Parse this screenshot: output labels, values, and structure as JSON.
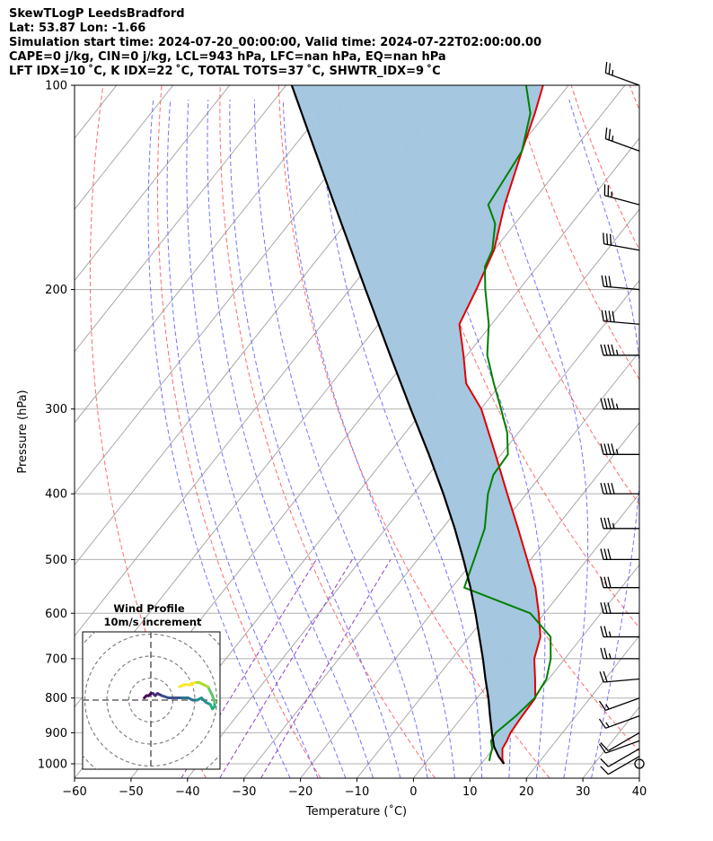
{
  "title_lines": [
    "SkewTLogP LeedsBradford",
    "Lat: 53.87   Lon: -1.66",
    "Simulation start time: 2024-07-20_00:00:00, Valid time: 2024-07-22T02:00:00.00",
    "CAPE=0 j/kg, CIN=0 j/kg, LCL=943 hPa, LFC=nan hPa, EQ=nan hPa",
    "LFT IDX=10 ˚C, K IDX=22 ˚C, TOTAL TOTS=37 ˚C, SHWTR_IDX=9 ˚C"
  ],
  "chart_data": {
    "type": "line",
    "diagram": "Skew-T log-P",
    "xlabel": "Temperature (˚C)",
    "ylabel": "Pressure (hPa)",
    "xlim": [
      -60,
      40
    ],
    "ylim": [
      1050,
      100
    ],
    "yscale": "log",
    "x_ticks": [
      "−60",
      "−50",
      "−40",
      "−30",
      "−20",
      "−10",
      "0",
      "10",
      "20",
      "30",
      "40"
    ],
    "x_tick_values": [
      -60,
      -50,
      -40,
      -30,
      -20,
      -10,
      0,
      10,
      20,
      30,
      40
    ],
    "y_ticks": [
      "100",
      "200",
      "300",
      "400",
      "500",
      "600",
      "700",
      "800",
      "900",
      "1000"
    ],
    "y_tick_values": [
      100,
      200,
      300,
      400,
      500,
      600,
      700,
      800,
      900,
      1000
    ],
    "grid": true,
    "colors": {
      "temperature": "#e00000",
      "dewpoint": "#008000",
      "parcel": "#000000",
      "cape_fill": "#a3c6df",
      "dry_adiabat": "#ff5050",
      "moist_adiabat": "#5050ff",
      "mixing_ratio": "#9040c0",
      "isotherm": "#aaaaaa"
    },
    "series": [
      {
        "key": "temperature",
        "pressure": [
          1000,
          985,
          950,
          925,
          900,
          850,
          800,
          750,
          700,
          650,
          600,
          550,
          500,
          450,
          400,
          350,
          300,
          275,
          250,
          225,
          200,
          175,
          150,
          125,
          110,
          100
        ],
        "values": [
          14,
          13.1,
          11.6,
          11.3,
          10.8,
          10.5,
          10.3,
          7.6,
          4.6,
          2.6,
          -1,
          -5.2,
          -10.6,
          -16.6,
          -23.4,
          -31,
          -39.9,
          -46.2,
          -50.6,
          -55.7,
          -57.6,
          -60,
          -64.5,
          -69,
          -72,
          -74.5
        ]
      },
      {
        "key": "dewpoint",
        "pressure": [
          990,
          975,
          950,
          925,
          900,
          850,
          800,
          750,
          700,
          650,
          600,
          550,
          500,
          450,
          400,
          375,
          350,
          325,
          300,
          275,
          250,
          225,
          200,
          185,
          175,
          160,
          150,
          140,
          125,
          110,
          100
        ],
        "values": [
          11,
          10.5,
          9.8,
          8.5,
          8.2,
          9.4,
          10.2,
          9.6,
          7.5,
          4.4,
          -2.5,
          -17.8,
          -20,
          -22.5,
          -26.8,
          -28.5,
          -28.8,
          -32,
          -36.4,
          -41.3,
          -46.4,
          -50.5,
          -56,
          -59.3,
          -60.3,
          -63.5,
          -67.4,
          -68,
          -69,
          -72.8,
          -77.5
        ]
      },
      {
        "key": "parcel",
        "pressure": [
          1000,
          975,
          943,
          900,
          850,
          800,
          750,
          700,
          650,
          600,
          550,
          500,
          450,
          400,
          350,
          300,
          250,
          200,
          150,
          125,
          100
        ],
        "values": [
          14,
          12,
          9.8,
          7.5,
          4.8,
          2,
          -1.2,
          -4.5,
          -8.2,
          -12.2,
          -16.7,
          -21.9,
          -27.8,
          -34.7,
          -42.8,
          -52.4,
          -63.6,
          -77.2,
          -94.6,
          -105.6,
          -119
        ]
      }
    ],
    "cape_region": {
      "between": [
        "temperature",
        "parcel"
      ],
      "from_pressure": 1000,
      "to_pressure": 100
    },
    "wind_barbs": {
      "pressure": [
        1000,
        975,
        950,
        925,
        900,
        850,
        800,
        750,
        700,
        650,
        600,
        550,
        500,
        450,
        400,
        350,
        300,
        250,
        225,
        200,
        175,
        150,
        125,
        100
      ],
      "speed_kt": [
        3,
        12,
        10,
        10,
        12,
        15,
        15,
        20,
        25,
        25,
        30,
        30,
        30,
        35,
        40,
        45,
        45,
        45,
        40,
        30,
        30,
        25,
        25,
        25
      ],
      "direction_deg": [
        230,
        240,
        240,
        250,
        240,
        250,
        250,
        265,
        270,
        270,
        270,
        270,
        270,
        270,
        270,
        270,
        270,
        270,
        275,
        275,
        280,
        285,
        290,
        290
      ]
    },
    "hodograph": {
      "title": "Wind Profile",
      "subtitle": "10m/s increment",
      "ring_spacing_ms": 10,
      "u": [
        -3,
        -2,
        -1,
        0,
        1,
        2,
        3,
        5,
        8,
        11,
        14,
        17,
        19,
        21,
        23,
        25,
        27,
        28,
        29,
        29,
        28,
        27,
        26,
        24,
        22,
        20,
        18,
        15,
        13
      ],
      "v": [
        1,
        2,
        2,
        3,
        3,
        2,
        3,
        2,
        1,
        1,
        1,
        1,
        0,
        0,
        1,
        -1,
        -2,
        -4,
        -3,
        -1,
        2,
        4,
        6,
        7,
        8,
        8,
        7,
        7,
        6
      ]
    }
  }
}
